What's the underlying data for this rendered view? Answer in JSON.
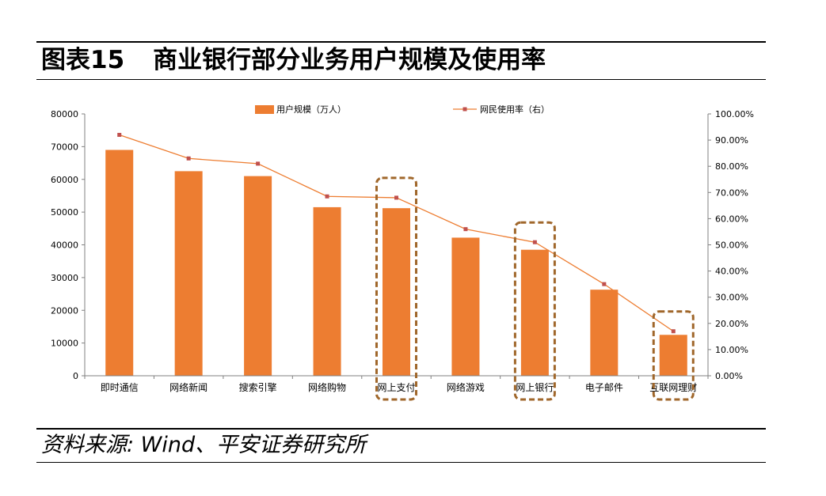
{
  "figure": {
    "number": "图表15",
    "title": "商业银行部分业务用户规模及使用率",
    "source": "资料来源: Wind、平安证券研究所"
  },
  "colors": {
    "bar": "#ED7D31",
    "line": "#ED7D31",
    "marker": "#C0504D",
    "highlight_box": "#A0672B"
  },
  "chart_data": {
    "type": "bar",
    "categories": [
      "即时通信",
      "网络新闻",
      "搜索引擎",
      "网络购物",
      "网上支付",
      "网络游戏",
      "网上银行",
      "电子邮件",
      "互联网理财"
    ],
    "series": [
      {
        "name": "用户规模（万人）",
        "type": "bar",
        "axis": "left",
        "values": [
          69000,
          62500,
          61000,
          51500,
          51200,
          42200,
          38500,
          26300,
          12500
        ]
      },
      {
        "name": "网民使用率（右）",
        "type": "line",
        "axis": "right",
        "values": [
          0.92,
          0.83,
          0.81,
          0.685,
          0.68,
          0.56,
          0.51,
          0.35,
          0.17
        ]
      }
    ],
    "y_left": {
      "ylim": [
        0,
        80000
      ],
      "ticks": [
        "0",
        "10000",
        "20000",
        "30000",
        "40000",
        "50000",
        "60000",
        "70000",
        "80000"
      ]
    },
    "y_right": {
      "ylim": [
        0,
        1
      ],
      "ticks": [
        "0.00%",
        "10.00%",
        "20.00%",
        "30.00%",
        "40.00%",
        "50.00%",
        "60.00%",
        "70.00%",
        "80.00%",
        "90.00%",
        "100.00%"
      ]
    },
    "highlighted_categories": [
      "网上支付",
      "网上银行",
      "互联网理财"
    ],
    "legend_position": "top",
    "grid": false
  }
}
